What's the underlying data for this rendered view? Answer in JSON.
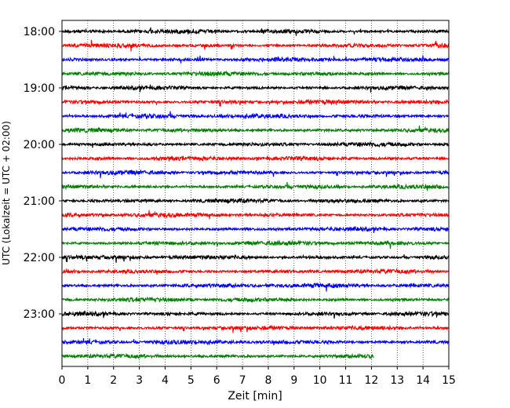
{
  "chart_data": {
    "type": "line",
    "title": "",
    "xlabel": "Zeit  [min]",
    "ylabel": "UTC (Lokalzeit = UTC + 02:00)",
    "xlim": [
      0,
      15
    ],
    "x_ticks": [
      "0",
      "1",
      "2",
      "3",
      "4",
      "5",
      "6",
      "7",
      "8",
      "9",
      "10",
      "11",
      "12",
      "13",
      "14",
      "15"
    ],
    "y_ticks": [
      "18:00",
      "19:00",
      "20:00",
      "21:00",
      "22:00",
      "23:00"
    ],
    "grid": "vertical dotted",
    "trace_interval_minutes": 15,
    "colors_cycle": [
      "#000000",
      "#ff0000",
      "#0000ff",
      "#008000"
    ],
    "traces": [
      {
        "start": "18:00",
        "color": "#000000",
        "end_min": 15
      },
      {
        "start": "18:15",
        "color": "#ff0000",
        "end_min": 15
      },
      {
        "start": "18:30",
        "color": "#0000ff",
        "end_min": 15
      },
      {
        "start": "18:45",
        "color": "#008000",
        "end_min": 15
      },
      {
        "start": "19:00",
        "color": "#000000",
        "end_min": 15
      },
      {
        "start": "19:15",
        "color": "#ff0000",
        "end_min": 15
      },
      {
        "start": "19:30",
        "color": "#0000ff",
        "end_min": 15
      },
      {
        "start": "19:45",
        "color": "#008000",
        "end_min": 15
      },
      {
        "start": "20:00",
        "color": "#000000",
        "end_min": 15
      },
      {
        "start": "20:15",
        "color": "#ff0000",
        "end_min": 15
      },
      {
        "start": "20:30",
        "color": "#0000ff",
        "end_min": 15
      },
      {
        "start": "20:45",
        "color": "#008000",
        "end_min": 15
      },
      {
        "start": "21:00",
        "color": "#000000",
        "end_min": 15
      },
      {
        "start": "21:15",
        "color": "#ff0000",
        "end_min": 15
      },
      {
        "start": "21:30",
        "color": "#0000ff",
        "end_min": 15
      },
      {
        "start": "21:45",
        "color": "#008000",
        "end_min": 15
      },
      {
        "start": "22:00",
        "color": "#000000",
        "end_min": 15
      },
      {
        "start": "22:15",
        "color": "#ff0000",
        "end_min": 15
      },
      {
        "start": "22:30",
        "color": "#0000ff",
        "end_min": 15
      },
      {
        "start": "22:45",
        "color": "#008000",
        "end_min": 15
      },
      {
        "start": "23:00",
        "color": "#000000",
        "end_min": 15
      },
      {
        "start": "23:15",
        "color": "#ff0000",
        "end_min": 15
      },
      {
        "start": "23:30",
        "color": "#0000ff",
        "end_min": 15
      },
      {
        "start": "23:45",
        "color": "#008000",
        "end_min": 12.1
      }
    ]
  }
}
